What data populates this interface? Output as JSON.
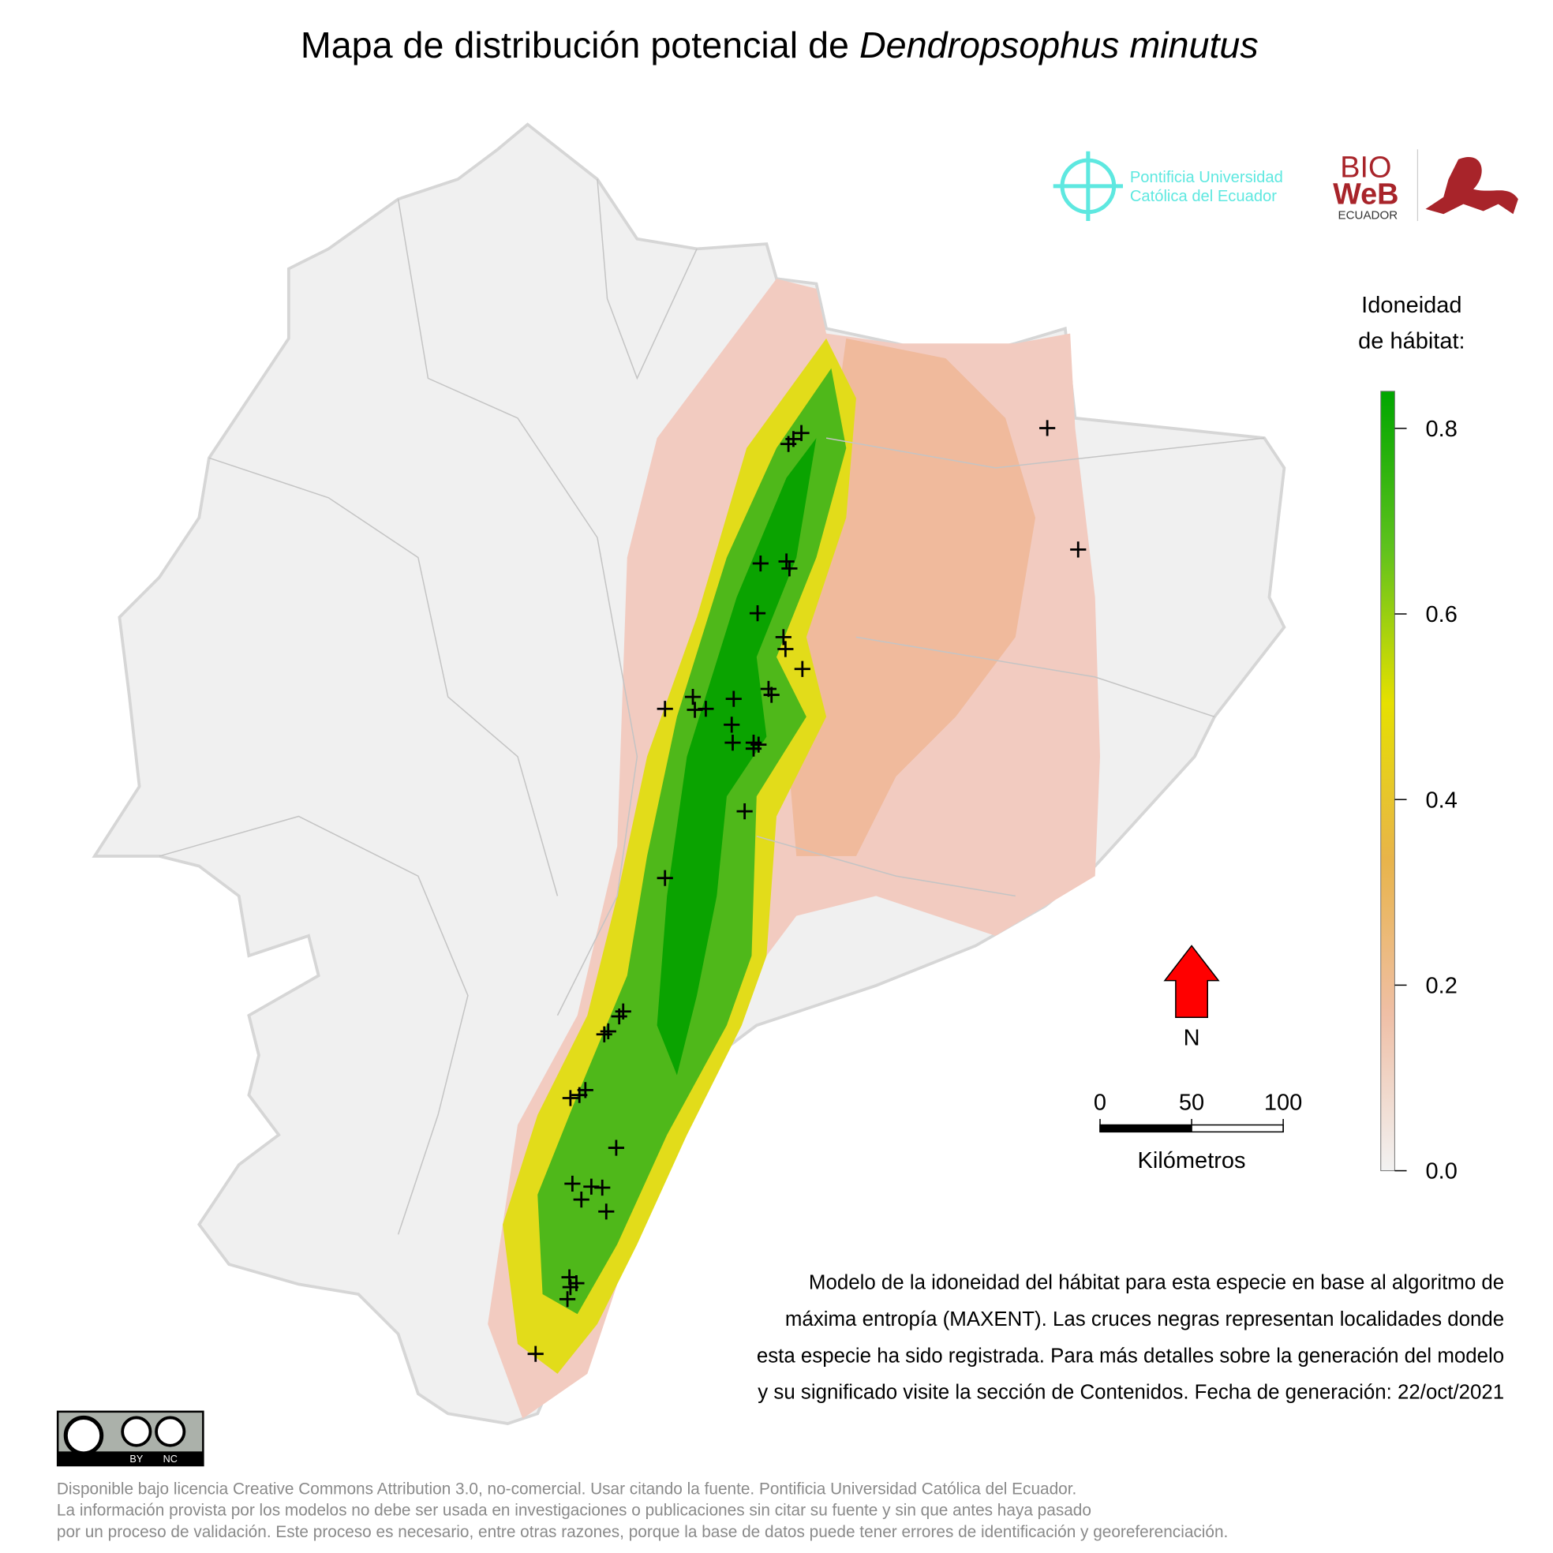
{
  "title": {
    "prefix": "Mapa de distribución potencial de ",
    "species": "Dendropsophus minutus"
  },
  "logos": {
    "puce": [
      "Pontificia Universidad",
      "Católica del Ecuador"
    ],
    "bioweb": [
      "BIO",
      "WeB",
      "ECUADOR"
    ]
  },
  "legend": {
    "title": [
      "Idoneidad",
      "de hábitat:"
    ],
    "range": [
      0,
      0.84
    ],
    "ticks": [
      {
        "value": 0,
        "label": "0.0"
      },
      {
        "value": 0.2,
        "label": "0.2"
      },
      {
        "value": 0.4,
        "label": "0.4"
      },
      {
        "value": 0.6,
        "label": "0.6"
      },
      {
        "value": 0.8,
        "label": "0.8"
      }
    ],
    "colors": [
      "#f2f2f2",
      "#efbfa6",
      "#e8b44a",
      "#e6e000",
      "#5ec21d",
      "#00a600"
    ]
  },
  "north": "N",
  "scale_bar": {
    "ticks": [
      0,
      50,
      100
    ],
    "label": "Kilómetros"
  },
  "description": [
    "Modelo de la idoneidad del hábitat para esta especie en base al algoritmo de",
    "máxima entropía (MAXENT). Las cruces negras representan localidades donde",
    "esta especie ha sido registrada. Para más detalles sobre la generación del modelo",
    "y su significado visite la sección de Contenidos. Fecha de generación: 22/oct/2021"
  ],
  "license_badge": [
    "BY",
    "NC"
  ],
  "license": [
    "Disponible bajo licencia Creative Commons Attribution 3.0, no-comercial. Usar citando la fuente. Pontificia Universidad Católica del Ecuador.",
    "La información provista por los modelos no debe ser usada en investigaciones o publicaciones sin citar su fuente y sin que antes haya pasado",
    "por un proceso de validación. Este proceso es necesario, entre otras razones, porque la base de datos puede tener errores de identificación y georeferenciación."
  ]
}
